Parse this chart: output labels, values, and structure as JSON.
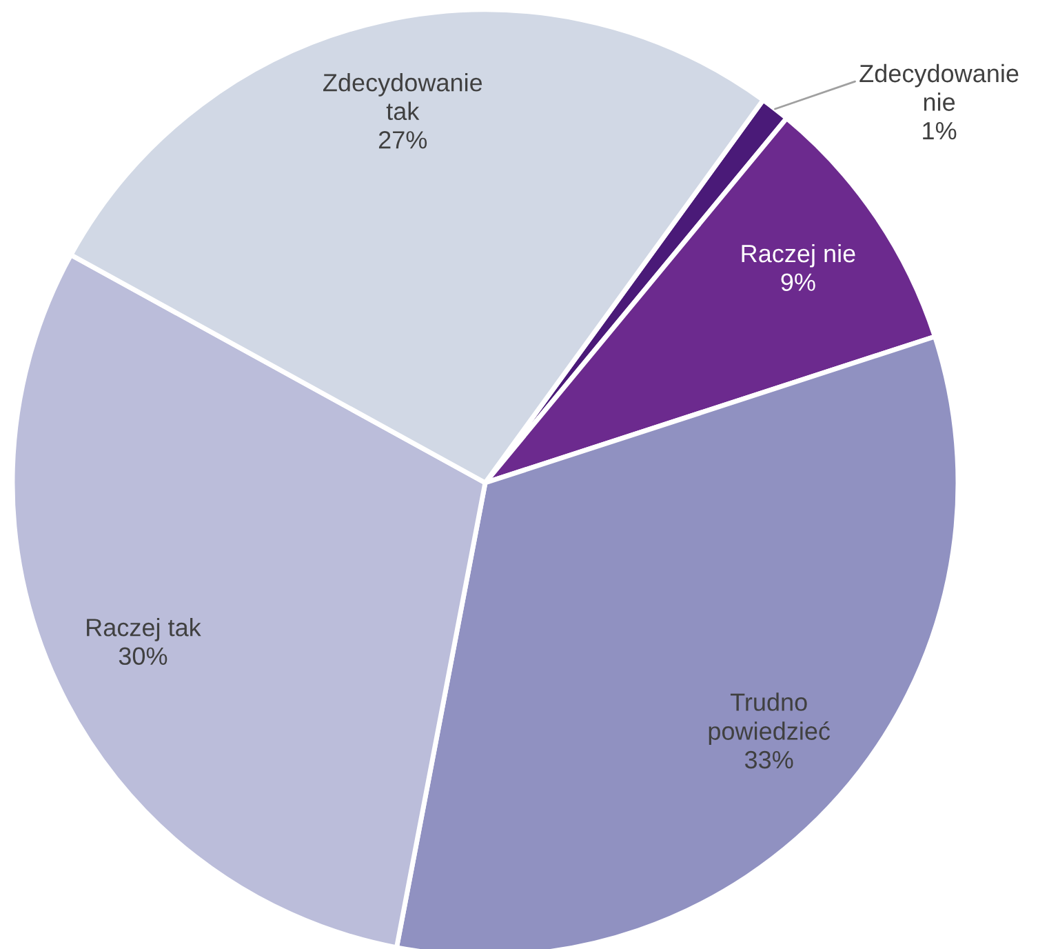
{
  "chart_data": {
    "type": "pie",
    "categories": [
      "Zdecydowanie nie",
      "Raczej nie",
      "Trudno powiedzieć",
      "Raczej tak",
      "Zdecydowanie tak"
    ],
    "values": [
      1,
      9,
      33,
      30,
      27
    ],
    "value_labels": [
      "1%",
      "9%",
      "33%",
      "30%",
      "27%"
    ],
    "colors": [
      "#4a1a78",
      "#6c2a8e",
      "#9091c1",
      "#bbbdda",
      "#d1d8e5"
    ],
    "legend": false
  }
}
